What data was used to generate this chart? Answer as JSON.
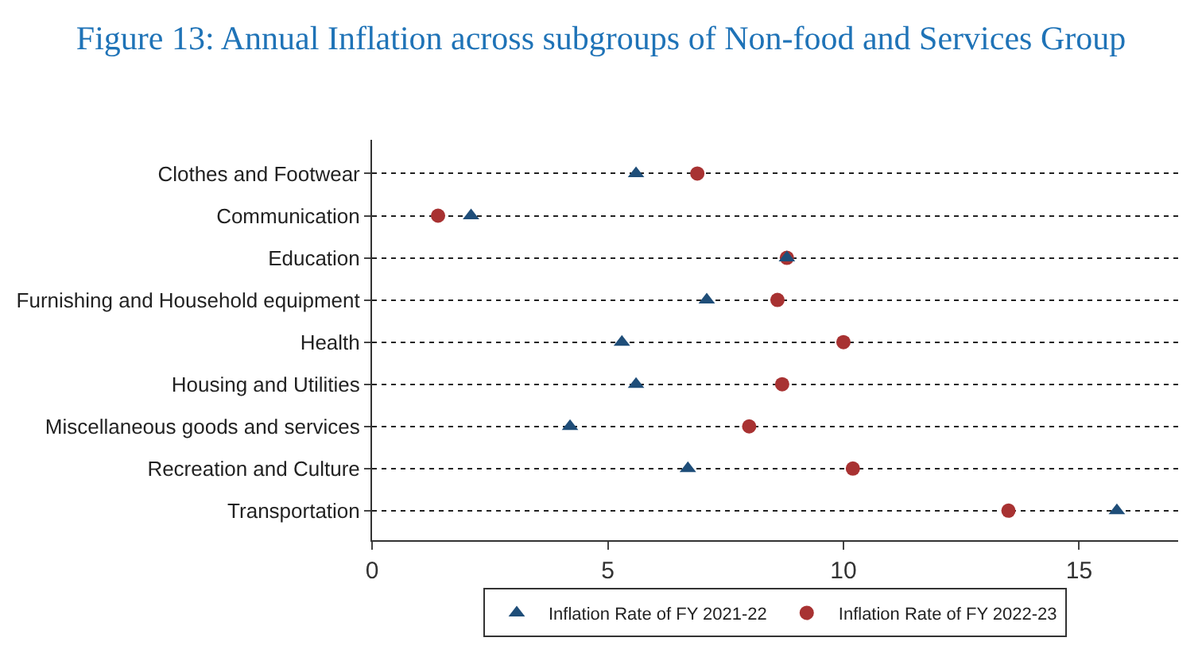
{
  "chart_data": {
    "type": "scatter",
    "orientation": "horizontal",
    "title": "Figure 13: Annual Inflation across subgroups of Non-food and Services Group",
    "categories": [
      "Clothes and Footwear",
      "Communication",
      "Education",
      "Furnishing and Household equipment",
      "Health",
      "Housing and Utilities",
      "Miscellaneous goods and services",
      "Recreation and Culture",
      "Transportation"
    ],
    "series": [
      {
        "name": "Inflation Rate of FY 2021-22",
        "color": "#1f4e79",
        "marker": "triangle",
        "values": [
          5.6,
          2.1,
          8.8,
          7.1,
          5.3,
          5.6,
          4.2,
          6.7,
          15.8
        ]
      },
      {
        "name": "Inflation Rate of FY 2022-23",
        "color": "#a83232",
        "marker": "circle",
        "values": [
          6.9,
          1.4,
          8.8,
          8.6,
          10.0,
          8.7,
          8.0,
          10.2,
          13.5
        ]
      }
    ],
    "xlim": [
      0,
      17.1
    ],
    "xticks": [
      0,
      5,
      10,
      15
    ],
    "grid": "y",
    "line_style": "dotted",
    "legend": "bottom"
  }
}
